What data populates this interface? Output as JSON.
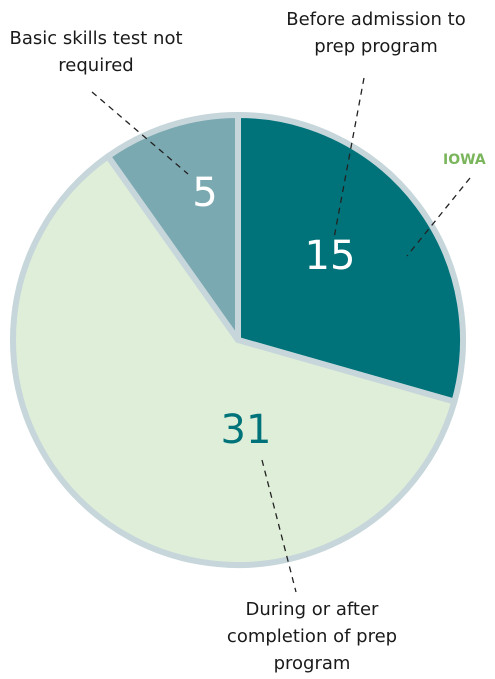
{
  "chart_data": {
    "type": "pie",
    "categories": [
      "Before admission to prep program",
      "During or after completion of prep program",
      "Basic skills test not required"
    ],
    "values": [
      15,
      31,
      5
    ],
    "colors": [
      "#00737a",
      "#dfeed8",
      "#7ba9b1"
    ],
    "value_label_colors": [
      "#ffffff",
      "#00737a",
      "#ffffff"
    ],
    "annotation": "IOWA",
    "annotation_color": "#7ab55c"
  }
}
